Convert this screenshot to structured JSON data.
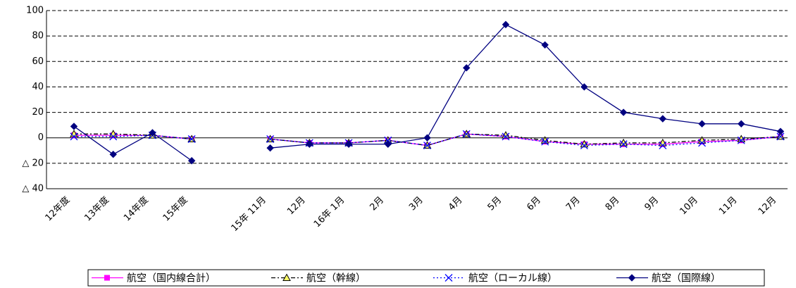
{
  "chart_data": {
    "type": "line",
    "categories": [
      "12年度",
      "13年度",
      "14年度",
      "15年度",
      null,
      "15年 11月",
      "12月",
      "16年 1月",
      "2月",
      "3月",
      "4月",
      "5月",
      "6月",
      "7月",
      "8月",
      "9月",
      "10月",
      "11月",
      "12月"
    ],
    "ylim": [
      -40,
      100
    ],
    "yticks": [
      {
        "value": -40,
        "label": "△ 40"
      },
      {
        "value": -20,
        "label": "△ 20"
      },
      0,
      20,
      40,
      60,
      80,
      100
    ],
    "grid": true,
    "legend": "bottom",
    "series": [
      {
        "name": "航空（国内線合計）",
        "color": "#ff00ff",
        "marker": "square",
        "dash": "solid",
        "values": [
          2,
          2,
          2,
          -1,
          null,
          -1,
          -4,
          -4,
          -2,
          -6,
          3,
          1,
          -3,
          -5,
          -5,
          -5,
          -3,
          -2,
          1
        ]
      },
      {
        "name": "航空（幹線）",
        "color": "#000000",
        "marker_color": "#ffff66",
        "marker": "triangle",
        "dash": "dashdot",
        "values": [
          3,
          3,
          2,
          -1,
          null,
          -1,
          -4,
          -4,
          -2,
          -6,
          3,
          2,
          -2,
          -5,
          -4,
          -4,
          -2,
          -1,
          1
        ]
      },
      {
        "name": "航空（ローカル線）",
        "color": "#0000ff",
        "marker": "cross",
        "dash": "dotted",
        "values": [
          1,
          1,
          2,
          -1,
          null,
          -1,
          -4,
          -4,
          -2,
          -6,
          3,
          1,
          -3,
          -6,
          -5,
          -6,
          -4,
          -2,
          1
        ]
      },
      {
        "name": "航空（国際線）",
        "color": "#000080",
        "marker": "diamond",
        "dash": "solid",
        "values": [
          9,
          -13,
          4,
          -18,
          null,
          -8,
          -5,
          -5,
          -5,
          0,
          55,
          89,
          73,
          40,
          20,
          15,
          11,
          11,
          5
        ]
      }
    ]
  }
}
